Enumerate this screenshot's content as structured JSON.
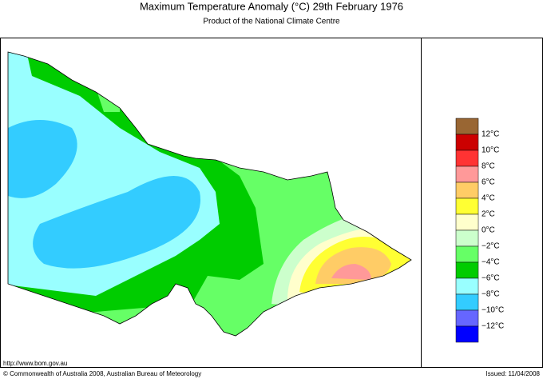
{
  "header": {
    "title": "Maximum Temperature Anomaly (°C)  29th February 1976",
    "subtitle": "Product of the National Climate Centre"
  },
  "legend": {
    "colors": [
      "#996633",
      "#cc0000",
      "#ff3333",
      "#ff9999",
      "#ffcc66",
      "#ffff33",
      "#ffffcc",
      "#ccffcc",
      "#66ff66",
      "#00cc00",
      "#99ffff",
      "#33ccff",
      "#6666ff",
      "#0000ff"
    ],
    "labels": [
      "12°C",
      "10°C",
      "8°C",
      "6°C",
      "4°C",
      "2°C",
      "0°C",
      "−2°C",
      "−4°C",
      "−6°C",
      "−8°C",
      "−10°C",
      "−12°C"
    ]
  },
  "footer": {
    "url": "http://www.bom.gov.au",
    "copyright": "© Commonwealth of Australia 2008, Australian Bureau of Meteorology",
    "issued": "Issued: 11/04/2008"
  }
}
